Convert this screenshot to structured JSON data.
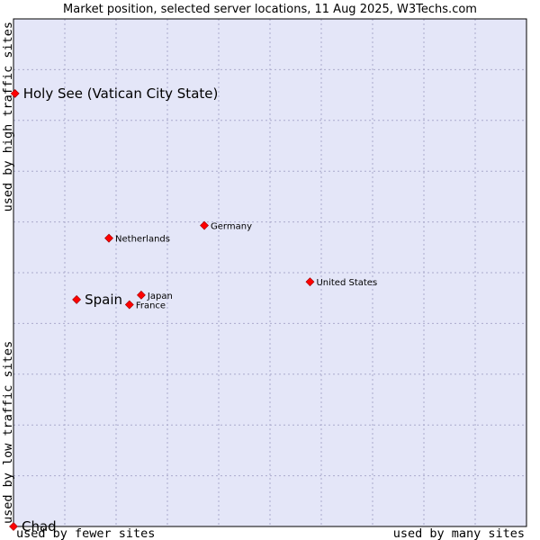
{
  "chart_data": {
    "type": "scatter",
    "title": "Market position, selected server locations, 11 Aug 2025, W3Techs.com",
    "xlabel_left": "used by fewer sites",
    "xlabel_right": "used by many sites",
    "ylabel_bottom": "used by low traffic sites",
    "ylabel_top": "used by high traffic sites",
    "xlim": [
      0,
      10
    ],
    "ylim": [
      0,
      10
    ],
    "grid": true,
    "colors": {
      "plot_bg": "#e4e6f8",
      "grid": "#aaaacc",
      "marker": "#ff0000",
      "marker_edge": "#990000"
    },
    "points": [
      {
        "name": "Holy See (Vatican City State)",
        "x": 0.03,
        "y": 8.53,
        "emphasis": true
      },
      {
        "name": "Germany",
        "x": 3.72,
        "y": 5.93,
        "emphasis": false
      },
      {
        "name": "Netherlands",
        "x": 1.86,
        "y": 5.68,
        "emphasis": false
      },
      {
        "name": "United States",
        "x": 5.78,
        "y": 4.82,
        "emphasis": false
      },
      {
        "name": "Japan",
        "x": 2.49,
        "y": 4.56,
        "emphasis": false
      },
      {
        "name": "Spain",
        "x": 1.23,
        "y": 4.47,
        "emphasis": true
      },
      {
        "name": "France",
        "x": 2.26,
        "y": 4.37,
        "emphasis": false
      },
      {
        "name": "Chad",
        "x": 0.0,
        "y": 0.0,
        "emphasis": true
      }
    ]
  }
}
